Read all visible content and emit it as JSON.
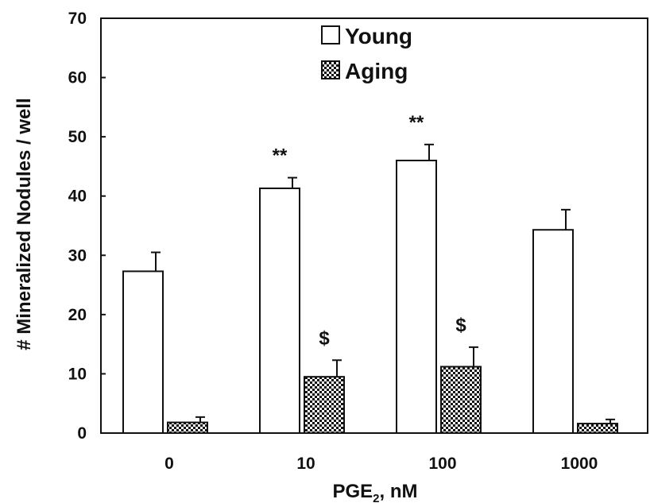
{
  "chart_data": {
    "type": "bar",
    "title": "",
    "xlabel": {
      "main": "PGE",
      "sub": "2",
      "unit": ", nM"
    },
    "ylabel": "# Mineralized Nodules / well",
    "ylim": [
      0,
      70
    ],
    "yticks": [
      0,
      10,
      20,
      30,
      40,
      50,
      60,
      70
    ],
    "categories": [
      "0",
      "10",
      "100",
      "1000"
    ],
    "series": [
      {
        "name": "Young",
        "values": [
          27.3,
          41.3,
          46.0,
          34.3
        ],
        "errors": [
          3.2,
          1.8,
          2.7,
          3.4
        ],
        "fill": "white"
      },
      {
        "name": "Aging",
        "values": [
          1.8,
          9.5,
          11.2,
          1.6
        ],
        "errors": [
          0.9,
          2.8,
          3.3,
          0.7
        ],
        "fill": "checkered"
      }
    ],
    "annotations": [
      {
        "text": "**",
        "series": 0,
        "category": 1
      },
      {
        "text": "**",
        "series": 0,
        "category": 2
      },
      {
        "text": "$",
        "series": 1,
        "category": 1
      },
      {
        "text": "$",
        "series": 1,
        "category": 2
      }
    ],
    "legend": "top-center",
    "grid": false
  }
}
